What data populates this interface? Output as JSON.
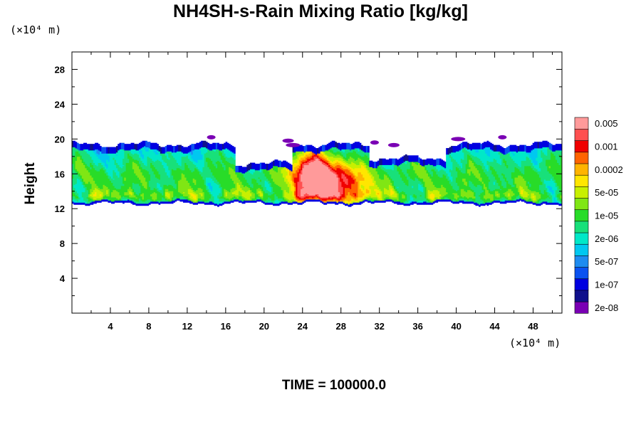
{
  "chart_data": {
    "type": "heatmap",
    "title": "NH4SH-s-Rain Mixing Ratio [kg/kg]",
    "xlabel": "",
    "ylabel": "Height",
    "x_unit": "(×10⁴ m)",
    "y_unit": "(×10⁴ m)",
    "xlim": [
      0,
      51
    ],
    "ylim": [
      0,
      30
    ],
    "x_ticks": [
      4,
      8,
      12,
      16,
      20,
      24,
      28,
      32,
      36,
      40,
      44,
      48
    ],
    "y_ticks": [
      4,
      8,
      12,
      16,
      20,
      24,
      28
    ],
    "colorbar": {
      "colors": [
        "#7a00b4",
        "#10108c",
        "#0000e0",
        "#0a52f0",
        "#1e8cf0",
        "#00c8f0",
        "#00e8c8",
        "#18e07a",
        "#28dc28",
        "#80e614",
        "#c8f000",
        "#ffe600",
        "#ffb400",
        "#ff6400",
        "#f00000",
        "#ff5050",
        "#ff9a9a"
      ],
      "labels": [
        "2e-08",
        "1e-07",
        "5e-07",
        "2e-06",
        "1e-05",
        "5e-05",
        "0.0002",
        "0.001",
        "0.005"
      ]
    },
    "field_description_layers": [
      {
        "level": 0,
        "regions": [
          {
            "x": [
              0,
              51
            ],
            "y": [
              12.2,
              20.3
            ]
          }
        ]
      },
      {
        "level": 8,
        "regions": [
          {
            "x": [
              0,
              12
            ],
            "y": [
              13,
              19.5
            ]
          },
          {
            "x": [
              33,
              51
            ],
            "y": [
              13,
              19.5
            ]
          }
        ]
      },
      {
        "level": 13,
        "regions": [
          {
            "x": [
              22,
              31
            ],
            "y": [
              12.6,
              19.4
            ]
          }
        ]
      },
      {
        "level": 16,
        "regions": [
          {
            "x": [
              23.5,
              27.5
            ],
            "y": [
              13,
              18.5
            ]
          }
        ]
      }
    ]
  },
  "footer": {
    "time_label": "TIME = 100000.0"
  }
}
